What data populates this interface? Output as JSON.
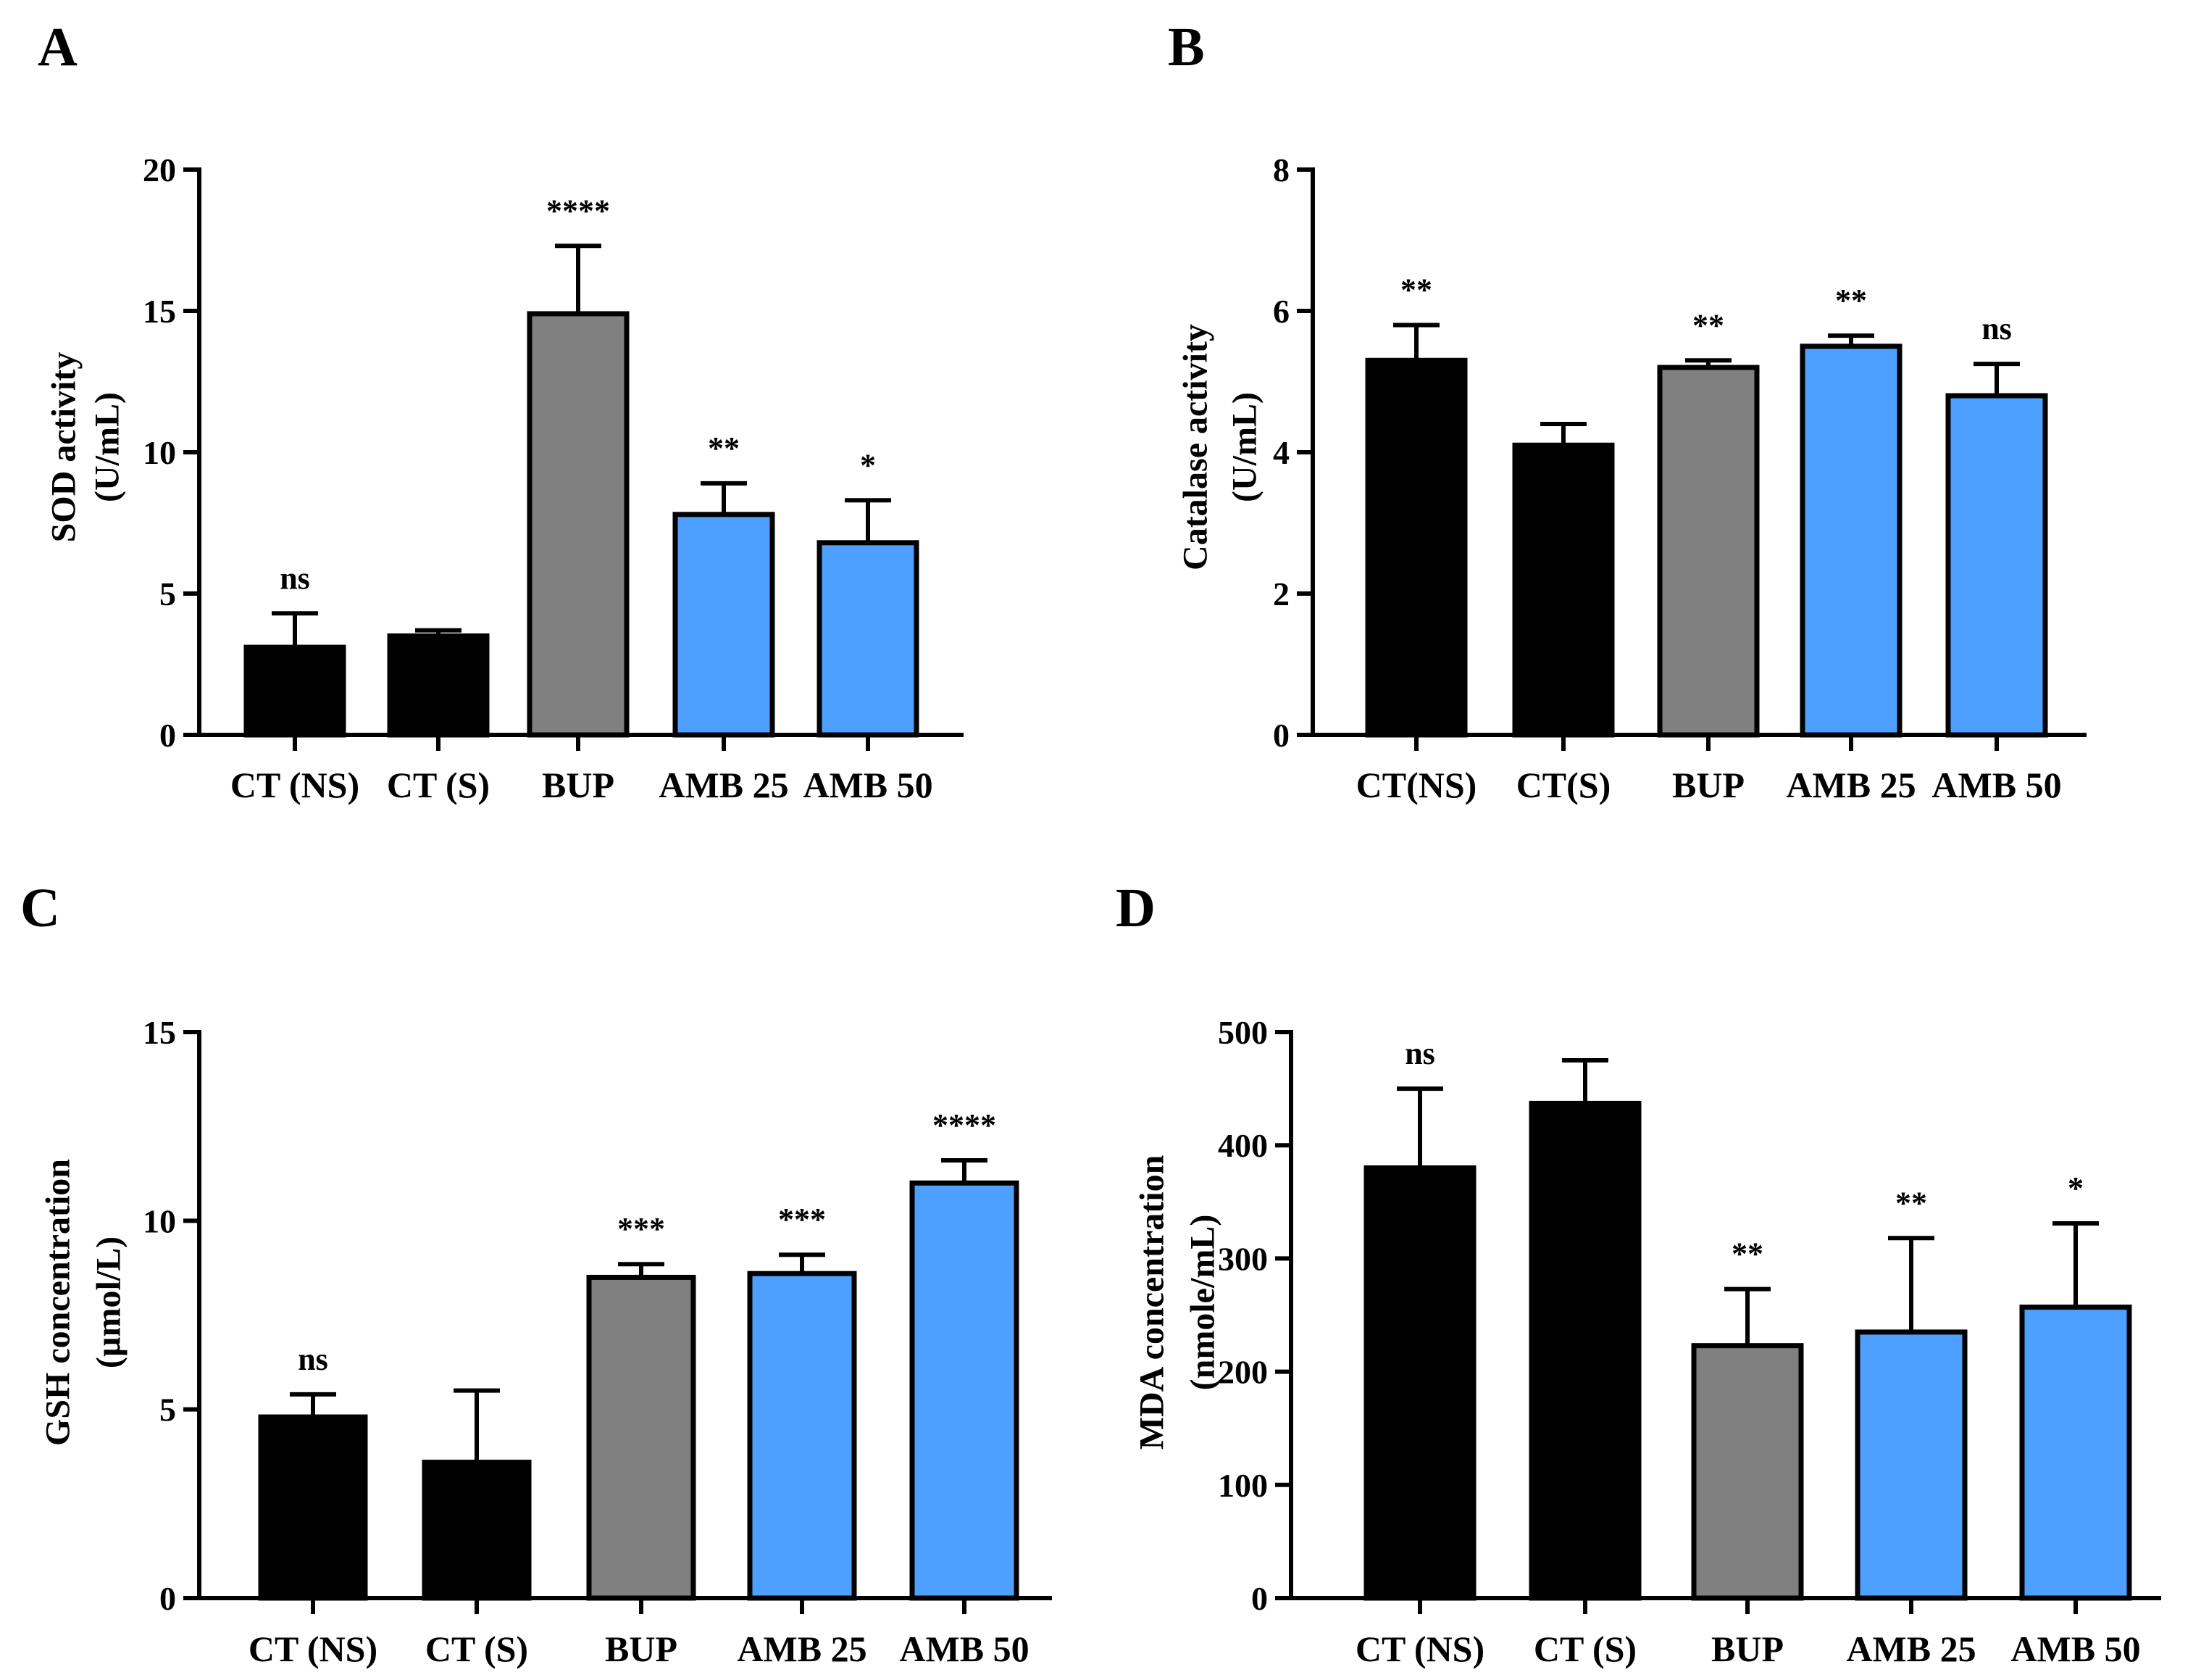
{
  "colors": {
    "black": "#000000",
    "gray": "#808080",
    "blue": "#4da0ff"
  },
  "chart_data": [
    {
      "id": "A",
      "panel_label": "A",
      "type": "bar",
      "ylabel_line1": "SOD activity",
      "ylabel_line2": "(U/mL)",
      "ylim": [
        0,
        20
      ],
      "yticks": [
        "0",
        "5",
        "10",
        "15",
        "20"
      ],
      "categories": [
        "CT (NS)",
        "CT (S)",
        "BUP",
        "AMB 25",
        "AMB 50"
      ],
      "values": [
        3.1,
        3.5,
        14.9,
        7.8,
        6.8
      ],
      "errors": [
        1.2,
        0.2,
        2.4,
        1.1,
        1.5
      ],
      "significance": [
        "ns",
        "",
        "****",
        "**",
        "*"
      ],
      "bar_colors": [
        "black",
        "black",
        "gray",
        "blue",
        "blue"
      ]
    },
    {
      "id": "B",
      "panel_label": "B",
      "type": "bar",
      "ylabel_line1": "Catalase activity",
      "ylabel_line2": "(U/mL)",
      "ylim": [
        0,
        8
      ],
      "yticks": [
        "0",
        "2",
        "4",
        "6",
        "8"
      ],
      "categories": [
        "CT(NS)",
        "CT(S)",
        "BUP",
        "AMB 25",
        "AMB 50"
      ],
      "values": [
        5.3,
        4.1,
        5.2,
        5.5,
        4.8
      ],
      "errors": [
        0.5,
        0.3,
        0.1,
        0.15,
        0.45
      ],
      "significance": [
        "**",
        "",
        "**",
        "**",
        "ns"
      ],
      "bar_colors": [
        "black",
        "black",
        "gray",
        "blue",
        "blue"
      ]
    },
    {
      "id": "C",
      "panel_label": "C",
      "type": "bar",
      "ylabel_line1": "GSH concentration",
      "ylabel_line2": "(µmol/L)",
      "ylim": [
        0,
        15
      ],
      "yticks": [
        "0",
        "5",
        "10",
        "15"
      ],
      "categories": [
        "CT (NS)",
        "CT (S)",
        "BUP",
        "AMB 25",
        "AMB 50"
      ],
      "values": [
        4.8,
        3.6,
        8.5,
        8.6,
        11.0
      ],
      "errors": [
        0.6,
        1.9,
        0.35,
        0.5,
        0.6
      ],
      "significance": [
        "ns",
        "",
        "***",
        "***",
        "****"
      ],
      "bar_colors": [
        "black",
        "black",
        "gray",
        "blue",
        "blue"
      ]
    },
    {
      "id": "D",
      "panel_label": "D",
      "type": "bar",
      "ylabel_line1": "MDA concentration",
      "ylabel_line2": "(nmole/mL)",
      "ylim": [
        0,
        500
      ],
      "yticks": [
        "0",
        "100",
        "200",
        "300",
        "400",
        "500"
      ],
      "categories": [
        "CT (NS)",
        "CT (S)",
        "BUP",
        "AMB 25",
        "AMB 50"
      ],
      "values": [
        380,
        437,
        223,
        235,
        257
      ],
      "errors": [
        70,
        38,
        50,
        83,
        74
      ],
      "significance": [
        "ns",
        "",
        "**",
        "**",
        "*"
      ],
      "bar_colors": [
        "black",
        "black",
        "gray",
        "blue",
        "blue"
      ]
    }
  ]
}
